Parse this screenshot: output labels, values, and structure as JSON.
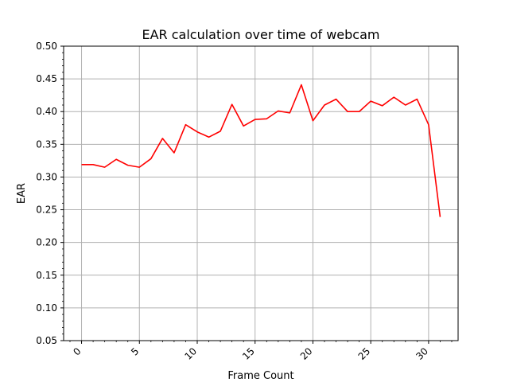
{
  "chart_data": {
    "type": "line",
    "title": "EAR calculation over time of webcam",
    "xlabel": "Frame Count",
    "ylabel": "EAR",
    "xlim": [
      -1.55,
      32.55
    ],
    "ylim": [
      0.05,
      0.5
    ],
    "x_ticks": [
      0,
      5,
      10,
      15,
      20,
      25,
      30
    ],
    "y_ticks": [
      0.05,
      0.1,
      0.15,
      0.2,
      0.25,
      0.3,
      0.35,
      0.4,
      0.45,
      0.5
    ],
    "x_tick_labels": [
      "0",
      "5",
      "10",
      "15",
      "20",
      "25",
      "30"
    ],
    "y_tick_labels": [
      "0.05",
      "0.10",
      "0.15",
      "0.20",
      "0.25",
      "0.30",
      "0.35",
      "0.40",
      "0.45",
      "0.50"
    ],
    "grid": true,
    "line_color": "#ff0000",
    "series": [
      {
        "x": [
          0,
          1,
          2,
          3,
          4,
          5,
          6,
          7,
          8,
          9,
          10,
          11,
          12,
          13,
          14,
          15,
          16,
          17,
          18,
          19,
          20,
          21,
          22,
          23,
          24,
          25,
          26,
          27,
          28,
          29,
          30,
          31
        ],
        "values": [
          0.319,
          0.319,
          0.315,
          0.327,
          0.318,
          0.315,
          0.328,
          0.359,
          0.337,
          0.38,
          0.369,
          0.361,
          0.37,
          0.411,
          0.378,
          0.388,
          0.389,
          0.401,
          0.398,
          0.441,
          0.386,
          0.41,
          0.419,
          0.4,
          0.4,
          0.416,
          0.409,
          0.422,
          0.41,
          0.419,
          0.38,
          0.239
        ]
      }
    ]
  }
}
